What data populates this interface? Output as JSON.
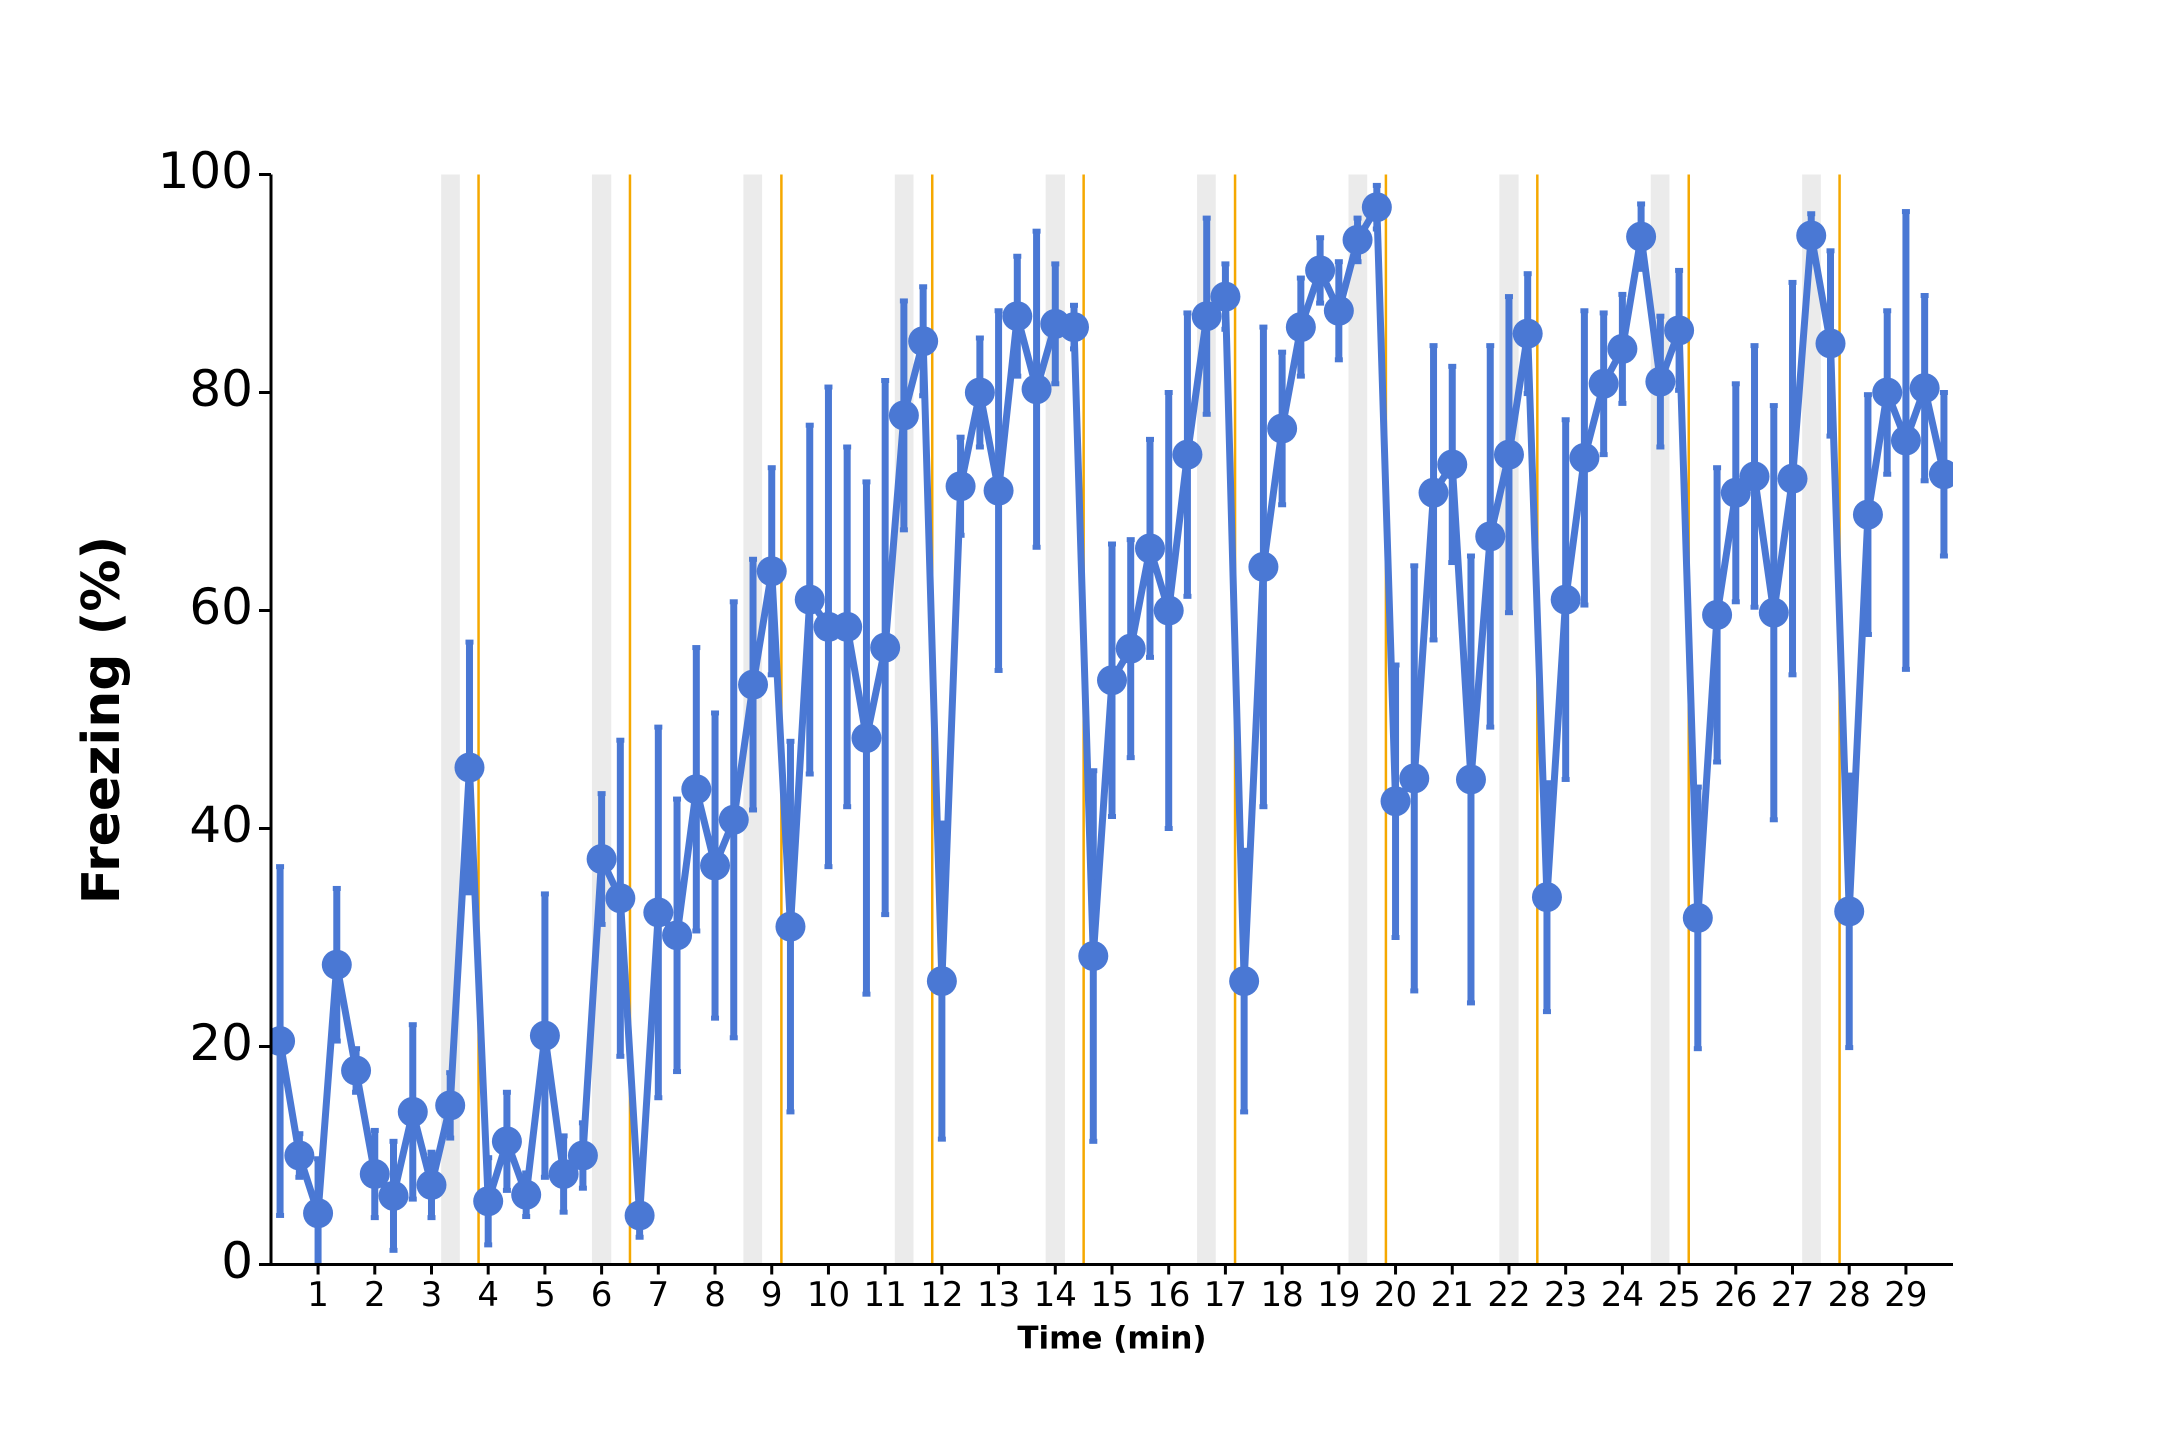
{
  "chart_data": {
    "type": "line",
    "xlabel": "Time (min)",
    "ylabel": "Freezing (%)",
    "xlim": [
      0.17,
      29.83
    ],
    "ylim": [
      0,
      100
    ],
    "xticks": [
      1,
      2,
      3,
      4,
      5,
      6,
      7,
      8,
      9,
      10,
      11,
      12,
      13,
      14,
      15,
      16,
      17,
      18,
      19,
      20,
      21,
      22,
      23,
      24,
      25,
      26,
      27,
      28,
      29
    ],
    "yticks": [
      0,
      20,
      40,
      60,
      80,
      100
    ],
    "shaded_regions": [
      [
        3.17,
        3.5
      ],
      [
        5.83,
        6.17
      ],
      [
        8.5,
        8.83
      ],
      [
        11.17,
        11.5
      ],
      [
        13.83,
        14.17
      ],
      [
        16.5,
        16.83
      ],
      [
        19.17,
        19.5
      ],
      [
        21.83,
        22.17
      ],
      [
        24.5,
        24.83
      ],
      [
        27.17,
        27.5
      ]
    ],
    "shade_color": "#ebebeb",
    "event_lines": [
      3.83,
      6.5,
      9.17,
      11.83,
      14.5,
      17.17,
      19.83,
      22.5,
      25.17,
      27.83
    ],
    "event_color": "#f5a800",
    "x": [
      0.33,
      0.67,
      1,
      1.33,
      1.67,
      2,
      2.33,
      2.67,
      3,
      3.33,
      3.67,
      4,
      4.33,
      4.67,
      5,
      5.33,
      5.67,
      6,
      6.33,
      6.67,
      7,
      7.33,
      7.67,
      8,
      8.33,
      8.67,
      9,
      9.33,
      9.67,
      10,
      10.33,
      10.67,
      11,
      11.33,
      11.67,
      12,
      12.33,
      12.67,
      13,
      13.33,
      13.67,
      14,
      14.33,
      14.67,
      15,
      15.33,
      15.67,
      16,
      16.33,
      16.67,
      17,
      17.33,
      17.67,
      18,
      18.33,
      18.67,
      19,
      19.33,
      19.67,
      20,
      20.33,
      20.67,
      21,
      21.33,
      21.67,
      22,
      22.33,
      22.67,
      23,
      23.33,
      23.67,
      24,
      24.33,
      24.67,
      25,
      25.33,
      25.67,
      26,
      26.33,
      26.67,
      27,
      27.33,
      27.67,
      28,
      28.33,
      28.67,
      29,
      29.33,
      29.67
    ],
    "series": [
      {
        "color": "#4a78d4",
        "values": [
          20.5,
          10,
          4.7,
          27.5,
          17.8,
          8.3,
          6.3,
          14,
          7.3,
          14.6,
          45.6,
          5.8,
          11.3,
          6.4,
          21,
          8.3,
          10,
          37.2,
          33.6,
          4.5,
          32.3,
          30.2,
          43.6,
          36.6,
          40.8,
          53.2,
          63.6,
          31,
          61,
          58.5,
          58.5,
          48.3,
          56.6,
          77.9,
          84.7,
          26,
          71.4,
          80,
          71,
          87,
          80.3,
          86.3,
          86,
          28.3,
          53.6,
          56.5,
          65.7,
          60,
          74.3,
          87,
          88.8,
          26,
          64,
          76.7,
          86,
          91.2,
          87.5,
          94,
          97,
          42.5,
          44.6,
          70.8,
          73.4,
          44.5,
          66.8,
          74.3,
          85.4,
          33.7,
          61,
          74,
          80.8,
          84,
          94.3,
          81,
          85.7,
          31.8,
          59.6,
          70.8,
          72.3,
          59.8,
          72.1,
          94.4,
          84.5,
          32.4,
          68.8,
          80,
          75.6,
          80.4,
          72.5
        ],
        "errors": [
          16,
          2,
          5,
          7,
          2,
          4,
          5,
          8,
          3,
          3,
          11.5,
          4,
          4.5,
          2,
          13,
          3.5,
          3,
          6,
          14.5,
          2,
          17,
          12.5,
          13,
          14,
          20,
          11.5,
          9.5,
          17,
          16,
          22,
          16.5,
          23.5,
          24.5,
          10.5,
          5,
          14.5,
          4.5,
          5,
          16.5,
          5.5,
          14.5,
          5.5,
          2,
          17,
          12.5,
          10,
          10,
          20,
          13,
          9,
          3,
          12,
          22,
          7,
          4.5,
          3,
          4.5,
          2,
          2,
          12.5,
          19.5,
          13.5,
          9,
          20.5,
          17.5,
          14.5,
          5.5,
          10.5,
          16.5,
          13.5,
          6.5,
          5,
          3,
          6,
          5.5,
          12,
          13.5,
          10,
          12,
          19,
          18,
          2,
          8.5,
          12.5,
          11,
          7.5,
          21,
          8.5,
          7.5
        ]
      }
    ]
  }
}
